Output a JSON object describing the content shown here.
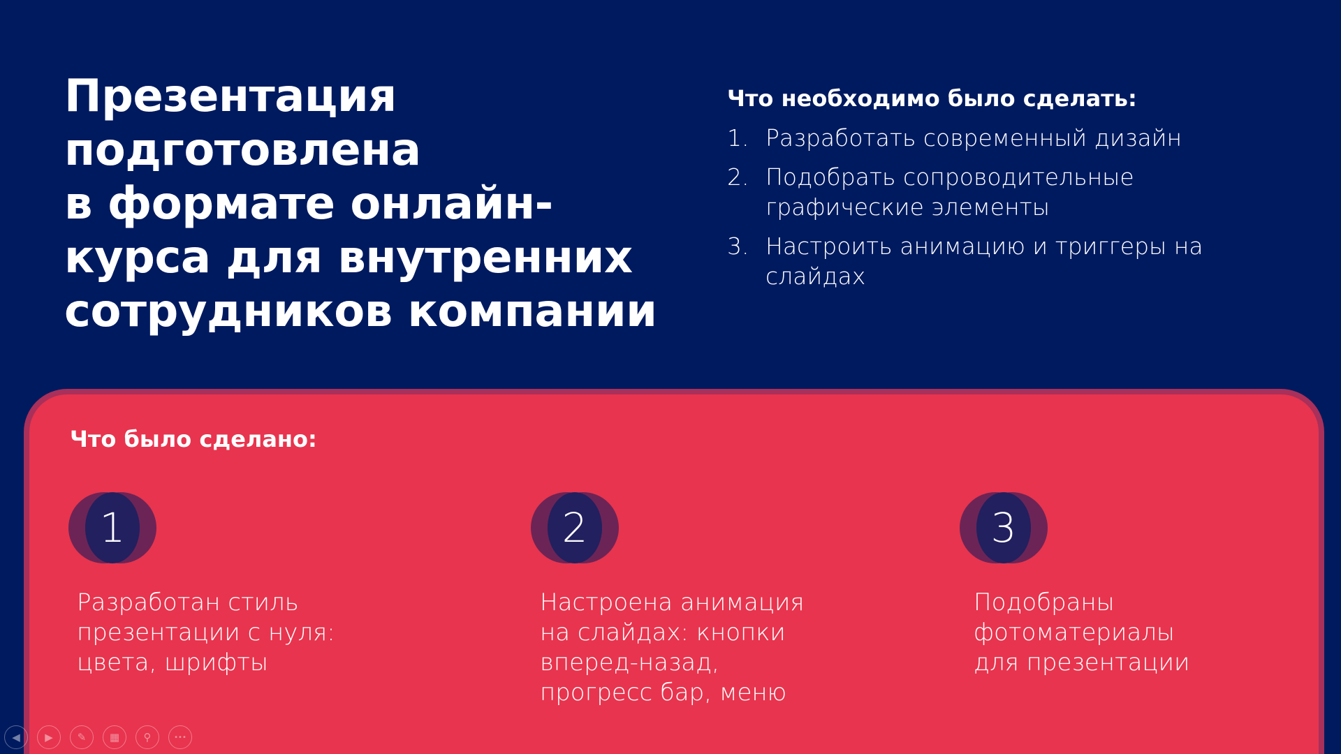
{
  "title_lines": [
    "Презентация",
    "подготовлена",
    "в формате онлайн-",
    "курса для внутренних",
    "сотрудников компании"
  ],
  "todo": {
    "heading": "Что необходимо было сделать:",
    "items": [
      {
        "num": "1.",
        "text": "Разработать современный дизайн"
      },
      {
        "num": "2.",
        "text": "Подобрать сопроводительные графические элементы"
      },
      {
        "num": "3.",
        "text": "Настроить анимацию и триггеры на слайдах"
      }
    ]
  },
  "done": {
    "heading": "Что было сделано:",
    "items": [
      {
        "num": "1",
        "text": "Разработан стиль презентации с нуля: цвета, шрифты"
      },
      {
        "num": "2",
        "text": "Настроена анимация на слайдах: кнопки вперед-назад, прогресс бар, меню"
      },
      {
        "num": "3",
        "text": "Подобраны фотоматериалы для презентации"
      }
    ]
  },
  "toolbar": [
    {
      "icon": "previous-icon",
      "glyph": "◀"
    },
    {
      "icon": "next-icon",
      "glyph": "▶"
    },
    {
      "icon": "pen-icon",
      "glyph": "✎"
    },
    {
      "icon": "slides-icon",
      "glyph": "▦"
    },
    {
      "icon": "zoom-icon",
      "glyph": "⚲"
    },
    {
      "icon": "more-icon",
      "glyph": "•••"
    }
  ],
  "colors": {
    "background": "#001a5f",
    "panel": "#e8344e",
    "panel_border": "#a8305a",
    "badge": "#22205f"
  }
}
